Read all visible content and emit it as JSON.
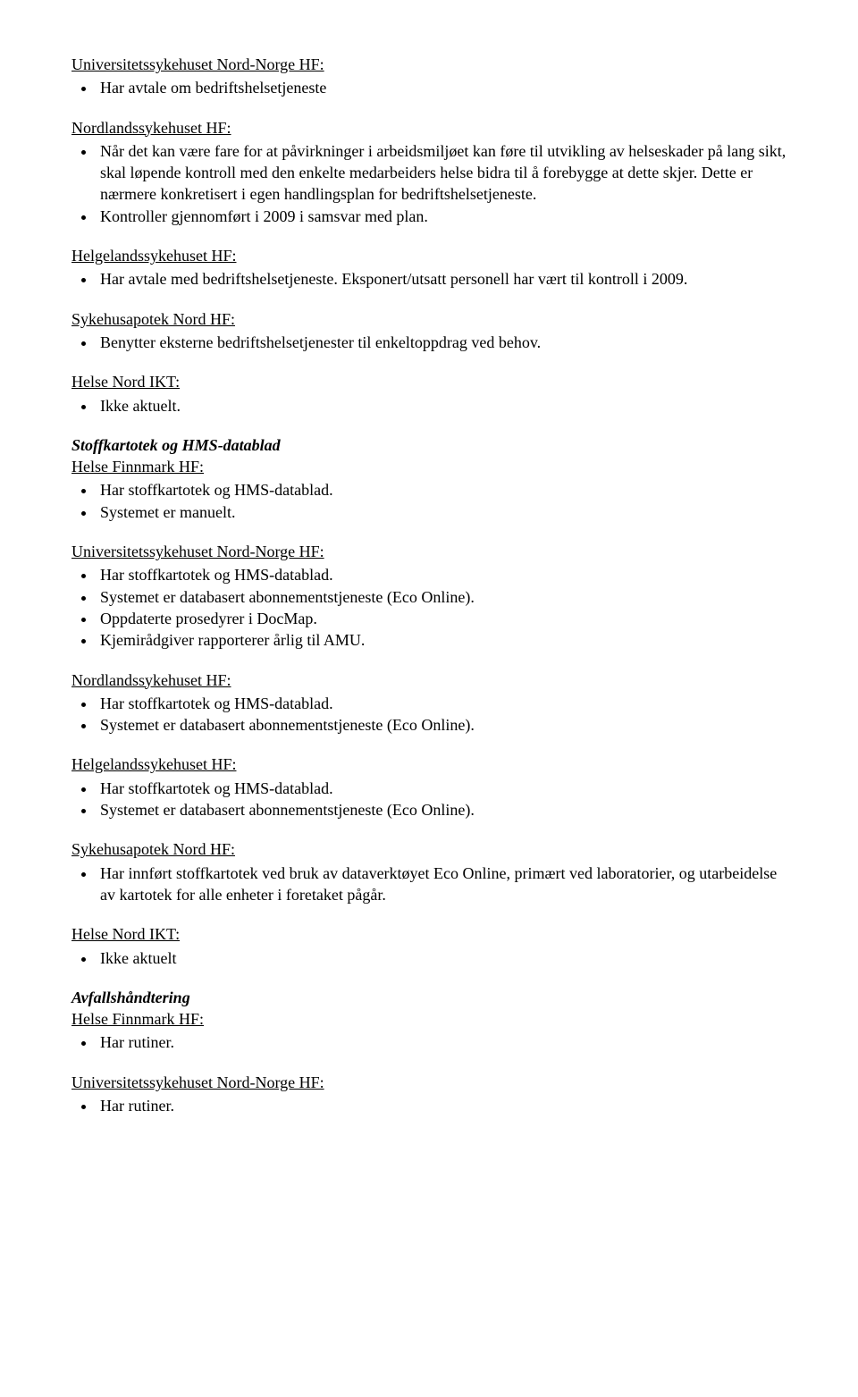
{
  "part1": {
    "s1": {
      "heading": "Universitetssykehuset Nord-Norge HF:",
      "items": [
        "Har avtale om bedriftshelsetjeneste"
      ]
    },
    "s2": {
      "heading": "Nordlandssykehuset HF:",
      "items": [
        "Når det kan være fare for at påvirkninger i arbeidsmiljøet kan føre til utvikling av helseskader på lang sikt, skal løpende kontroll med den enkelte medarbeiders helse bidra til å forebygge at dette skjer. Dette er nærmere konkretisert i egen handlingsplan for bedriftshelsetjeneste.",
        "Kontroller gjennomført i 2009 i samsvar med plan."
      ]
    },
    "s3": {
      "heading": "Helgelandssykehuset HF:",
      "items": [
        "Har avtale med bedriftshelsetjeneste. Eksponert/utsatt personell har vært til kontroll i 2009."
      ]
    },
    "s4": {
      "heading": "Sykehusapotek Nord HF:",
      "items": [
        "Benytter eksterne bedriftshelsetjenester til enkeltoppdrag ved behov."
      ]
    },
    "s5": {
      "heading": "Helse Nord IKT:",
      "items": [
        "Ikke aktuelt."
      ]
    }
  },
  "part2": {
    "title": "Stoffkartotek og HMS-datablad",
    "s1": {
      "heading": "Helse Finnmark HF:",
      "items": [
        "Har stoffkartotek og HMS-datablad.",
        "Systemet er manuelt."
      ]
    },
    "s2": {
      "heading": "Universitetssykehuset Nord-Norge HF:",
      "items": [
        "Har stoffkartotek og HMS-datablad.",
        "Systemet er databasert abonnementstjeneste (Eco Online).",
        "Oppdaterte prosedyrer i DocMap.",
        "Kjemirådgiver rapporterer årlig til AMU."
      ]
    },
    "s3": {
      "heading": "Nordlandssykehuset HF:",
      "items": [
        "Har stoffkartotek og HMS-datablad.",
        "Systemet er databasert abonnementstjeneste (Eco Online)."
      ]
    },
    "s4": {
      "heading": "Helgelandssykehuset HF:",
      "items": [
        "Har stoffkartotek og HMS-datablad.",
        "Systemet er databasert abonnementstjeneste (Eco Online)."
      ]
    },
    "s5": {
      "heading": "Sykehusapotek Nord HF:",
      "items": [
        "Har innført stoffkartotek ved bruk av dataverktøyet Eco Online, primært ved laboratorier, og utarbeidelse av kartotek for alle enheter i foretaket pågår."
      ]
    },
    "s6": {
      "heading": "Helse Nord IKT:",
      "items": [
        "Ikke aktuelt"
      ]
    }
  },
  "part3": {
    "title": "Avfallshåndtering",
    "s1": {
      "heading": "Helse Finnmark HF:",
      "items": [
        "Har rutiner."
      ]
    },
    "s2": {
      "heading": "Universitetssykehuset Nord-Norge HF:",
      "items": [
        "Har rutiner."
      ]
    }
  }
}
